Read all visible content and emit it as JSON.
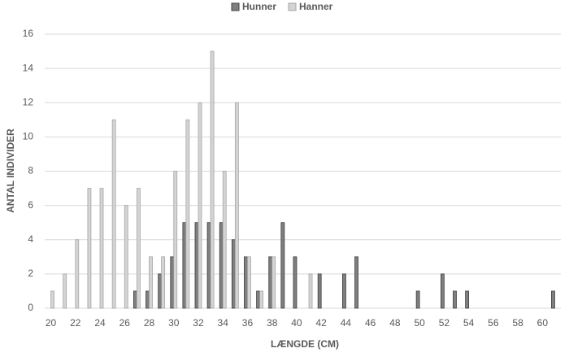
{
  "chart_data": {
    "type": "bar",
    "x_label": "LÆNGDE (CM)",
    "y_label": "ANTAL INDIVIDER",
    "categories": [
      "20",
      null,
      "22",
      null,
      "24",
      null,
      "26",
      null,
      "28",
      null,
      "30",
      null,
      "32",
      null,
      "34",
      null,
      "36",
      null,
      "38",
      null,
      "40",
      null,
      "42",
      null,
      "44",
      null,
      "46",
      null,
      "48",
      null,
      "50",
      null,
      "52",
      null,
      "54",
      null,
      "56",
      null,
      "58",
      null,
      "60",
      null
    ],
    "series": [
      {
        "name": "Hunner",
        "color": "#7f7f7f",
        "values": [
          0,
          0,
          0,
          0,
          0,
          0,
          0,
          1,
          1,
          2,
          3,
          5,
          5,
          5,
          5,
          4,
          3,
          1,
          3,
          5,
          3,
          0,
          2,
          0,
          2,
          3,
          0,
          0,
          0,
          0,
          1,
          0,
          2,
          1,
          1,
          0,
          0,
          0,
          0,
          0,
          0,
          1
        ]
      },
      {
        "name": "Hanner",
        "color": "#d4d4d4",
        "values": [
          1,
          2,
          4,
          7,
          7,
          11,
          6,
          7,
          3,
          3,
          8,
          11,
          12,
          15,
          8,
          12,
          3,
          1,
          3,
          0,
          0,
          2,
          0,
          0,
          0,
          0,
          0,
          0,
          0,
          0,
          0,
          0,
          0,
          0,
          0,
          0,
          0,
          0,
          0,
          0,
          0,
          0
        ]
      }
    ],
    "ylim": [
      0,
      16
    ],
    "yticks": [
      0,
      2,
      4,
      6,
      8,
      10,
      12,
      14,
      16
    ],
    "grid": true,
    "legend": "top"
  }
}
